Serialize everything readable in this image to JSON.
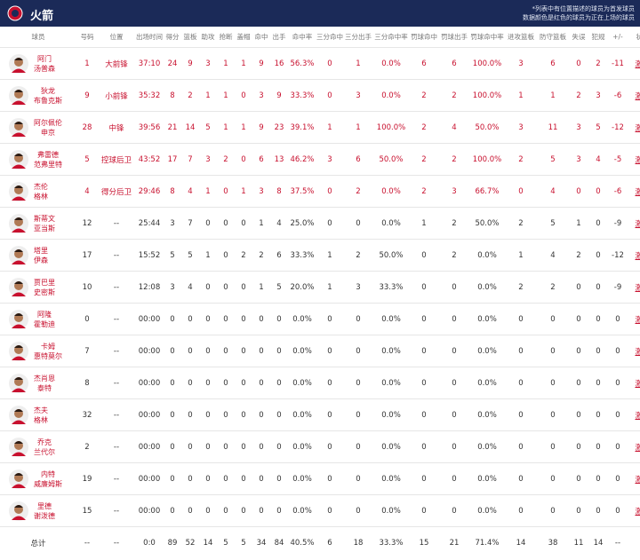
{
  "header": {
    "title": "火箭",
    "notes": [
      "*列表中有位置描述的球员为首发球员",
      "数据颜色是红色的球员为正在上场的球员"
    ]
  },
  "table": {
    "columns": [
      "球员",
      "号码",
      "位置",
      "出场时间",
      "得分",
      "篮板",
      "助攻",
      "抢断",
      "盖帽",
      "命中",
      "出手",
      "命中率",
      "三分命中",
      "三分出手",
      "三分命中率",
      "罚球命中",
      "罚球出手",
      "罚球命中率",
      "进攻篮板",
      "防守篮板",
      "失误",
      "犯规",
      "+/-",
      "状态"
    ],
    "highlight_color": "#c8102e",
    "rows": [
      {
        "name": [
          "阿门",
          "汤普森"
        ],
        "on_court": true,
        "cells": [
          "1",
          "大前锋",
          "37:10",
          "24",
          "9",
          "3",
          "1",
          "1",
          "9",
          "16",
          "56.3%",
          "0",
          "1",
          "0.0%",
          "6",
          "6",
          "100.0%",
          "3",
          "6",
          "0",
          "2",
          "-11",
          "激活"
        ]
      },
      {
        "name": [
          "狄龙",
          "布鲁克斯"
        ],
        "on_court": true,
        "cells": [
          "9",
          "小前锋",
          "35:32",
          "8",
          "2",
          "1",
          "1",
          "0",
          "3",
          "9",
          "33.3%",
          "0",
          "3",
          "0.0%",
          "2",
          "2",
          "100.0%",
          "1",
          "1",
          "2",
          "3",
          "-6",
          "激活"
        ]
      },
      {
        "name": [
          "阿尔佩伦",
          "申京"
        ],
        "on_court": true,
        "cells": [
          "28",
          "中锋",
          "39:56",
          "21",
          "14",
          "5",
          "1",
          "1",
          "9",
          "23",
          "39.1%",
          "1",
          "1",
          "100.0%",
          "2",
          "4",
          "50.0%",
          "3",
          "11",
          "3",
          "5",
          "-12",
          "激活"
        ]
      },
      {
        "name": [
          "弗雷德",
          "范弗里特"
        ],
        "on_court": true,
        "cells": [
          "5",
          "控球后卫",
          "43:52",
          "17",
          "7",
          "3",
          "2",
          "0",
          "6",
          "13",
          "46.2%",
          "3",
          "6",
          "50.0%",
          "2",
          "2",
          "100.0%",
          "2",
          "5",
          "3",
          "4",
          "-5",
          "激活"
        ]
      },
      {
        "name": [
          "杰伦",
          "格林"
        ],
        "on_court": true,
        "cells": [
          "4",
          "得分后卫",
          "29:46",
          "8",
          "4",
          "1",
          "0",
          "1",
          "3",
          "8",
          "37.5%",
          "0",
          "2",
          "0.0%",
          "2",
          "3",
          "66.7%",
          "0",
          "4",
          "0",
          "0",
          "-6",
          "激活"
        ]
      },
      {
        "name": [
          "斯蒂文",
          "亚当斯"
        ],
        "on_court": false,
        "cells": [
          "12",
          "--",
          "25:44",
          "3",
          "7",
          "0",
          "0",
          "0",
          "1",
          "4",
          "25.0%",
          "0",
          "0",
          "0.0%",
          "1",
          "2",
          "50.0%",
          "2",
          "5",
          "1",
          "0",
          "-9",
          "激活"
        ]
      },
      {
        "name": [
          "塔里",
          "伊森"
        ],
        "on_court": false,
        "cells": [
          "17",
          "--",
          "15:52",
          "5",
          "5",
          "1",
          "0",
          "2",
          "2",
          "6",
          "33.3%",
          "1",
          "2",
          "50.0%",
          "0",
          "2",
          "0.0%",
          "1",
          "4",
          "2",
          "0",
          "-12",
          "激活"
        ]
      },
      {
        "name": [
          "贾巴里",
          "史密斯"
        ],
        "on_court": false,
        "cells": [
          "10",
          "--",
          "12:08",
          "3",
          "4",
          "0",
          "0",
          "0",
          "1",
          "5",
          "20.0%",
          "1",
          "3",
          "33.3%",
          "0",
          "0",
          "0.0%",
          "2",
          "2",
          "0",
          "0",
          "-9",
          "激活"
        ]
      },
      {
        "name": [
          "阿隆",
          "霍勒迪"
        ],
        "on_court": false,
        "cells": [
          "0",
          "--",
          "00:00",
          "0",
          "0",
          "0",
          "0",
          "0",
          "0",
          "0",
          "0.0%",
          "0",
          "0",
          "0.0%",
          "0",
          "0",
          "0.0%",
          "0",
          "0",
          "0",
          "0",
          "0",
          "激活"
        ]
      },
      {
        "name": [
          "卡姆",
          "惠特莫尔"
        ],
        "on_court": false,
        "cells": [
          "7",
          "--",
          "00:00",
          "0",
          "0",
          "0",
          "0",
          "0",
          "0",
          "0",
          "0.0%",
          "0",
          "0",
          "0.0%",
          "0",
          "0",
          "0.0%",
          "0",
          "0",
          "0",
          "0",
          "0",
          "激活"
        ]
      },
      {
        "name": [
          "杰肖恩",
          "泰特"
        ],
        "on_court": false,
        "cells": [
          "8",
          "--",
          "00:00",
          "0",
          "0",
          "0",
          "0",
          "0",
          "0",
          "0",
          "0.0%",
          "0",
          "0",
          "0.0%",
          "0",
          "0",
          "0.0%",
          "0",
          "0",
          "0",
          "0",
          "0",
          "激活"
        ]
      },
      {
        "name": [
          "杰夫",
          "格林"
        ],
        "on_court": false,
        "cells": [
          "32",
          "--",
          "00:00",
          "0",
          "0",
          "0",
          "0",
          "0",
          "0",
          "0",
          "0.0%",
          "0",
          "0",
          "0.0%",
          "0",
          "0",
          "0.0%",
          "0",
          "0",
          "0",
          "0",
          "0",
          "激活"
        ]
      },
      {
        "name": [
          "乔克",
          "兰代尔"
        ],
        "on_court": false,
        "cells": [
          "2",
          "--",
          "00:00",
          "0",
          "0",
          "0",
          "0",
          "0",
          "0",
          "0",
          "0.0%",
          "0",
          "0",
          "0.0%",
          "0",
          "0",
          "0.0%",
          "0",
          "0",
          "0",
          "0",
          "0",
          "激活"
        ]
      },
      {
        "name": [
          "内特",
          "威廉姆斯"
        ],
        "on_court": false,
        "cells": [
          "19",
          "--",
          "00:00",
          "0",
          "0",
          "0",
          "0",
          "0",
          "0",
          "0",
          "0.0%",
          "0",
          "0",
          "0.0%",
          "0",
          "0",
          "0.0%",
          "0",
          "0",
          "0",
          "0",
          "0",
          "激活"
        ]
      },
      {
        "name": [
          "里德",
          "谢泼德"
        ],
        "on_court": false,
        "cells": [
          "15",
          "--",
          "00:00",
          "0",
          "0",
          "0",
          "0",
          "0",
          "0",
          "0",
          "0.0%",
          "0",
          "0",
          "0.0%",
          "0",
          "0",
          "0.0%",
          "0",
          "0",
          "0",
          "0",
          "0",
          "激活"
        ]
      }
    ],
    "total": {
      "label": "总计",
      "cells": [
        "--",
        "--",
        "0:0",
        "89",
        "52",
        "14",
        "5",
        "5",
        "34",
        "84",
        "40.5%",
        "6",
        "18",
        "33.3%",
        "15",
        "21",
        "71.4%",
        "14",
        "38",
        "11",
        "14",
        "--",
        "--"
      ]
    }
  }
}
